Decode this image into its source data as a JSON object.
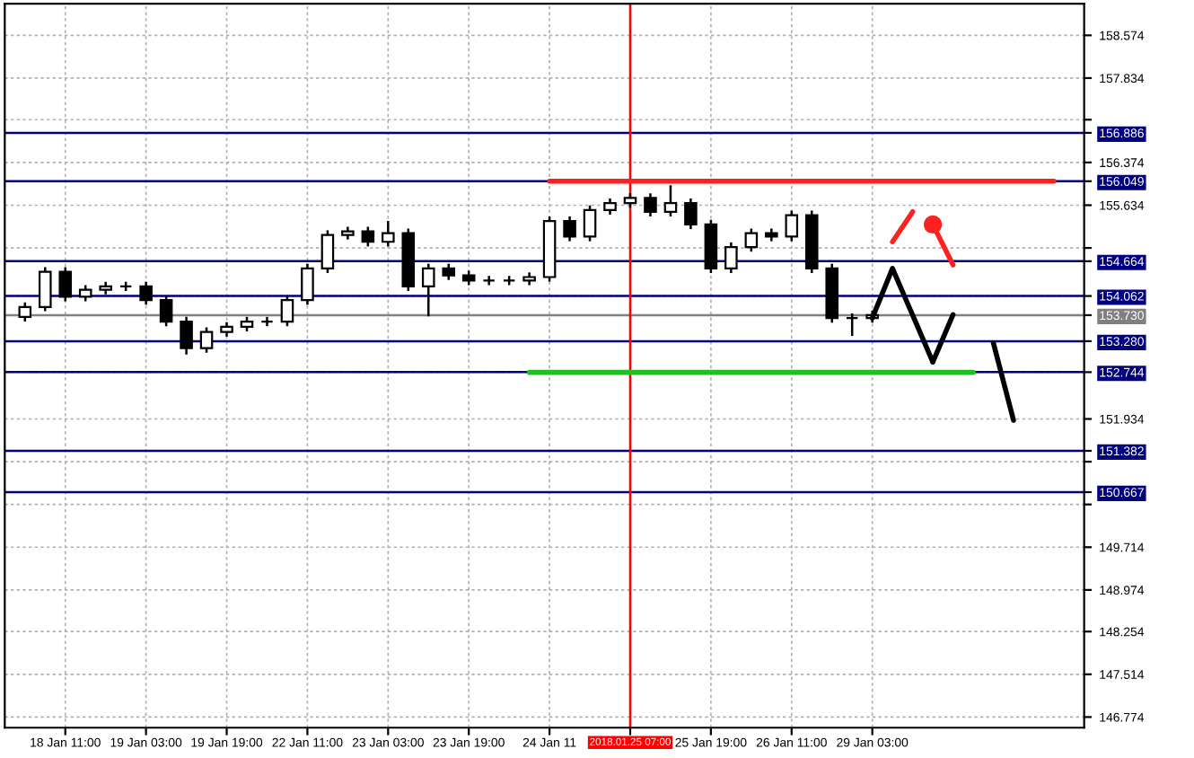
{
  "chart_data": {
    "type": "candlestick",
    "categories": [
      null,
      null,
      "18 Jan 11:00",
      null,
      null,
      null,
      "19 Jan 03:00",
      null,
      null,
      null,
      "19 Jan 19:00",
      null,
      null,
      null,
      "22 Jan 11:00",
      null,
      null,
      null,
      "23 Jan 03:00",
      null,
      null,
      null,
      "23 Jan 19:00",
      null,
      null,
      null,
      "24 Jan 11",
      null,
      null,
      null,
      "2018.01.25 07:00",
      null,
      null,
      null,
      "25 Jan 19:00",
      null,
      null,
      null,
      "26 Jan 11:00",
      null,
      null,
      null,
      "29 Jan 03:00",
      null,
      null,
      null,
      null,
      null,
      null,
      null,
      null,
      null,
      null
    ],
    "ohlc": [
      [
        153.7,
        153.95,
        153.62,
        153.87
      ],
      [
        153.87,
        154.56,
        153.8,
        154.48
      ],
      [
        154.48,
        154.56,
        153.97,
        154.05
      ],
      [
        154.05,
        154.25,
        153.97,
        154.17
      ],
      [
        154.17,
        154.31,
        154.09,
        154.23
      ],
      [
        154.23,
        154.31,
        154.15,
        154.23
      ],
      [
        154.23,
        154.31,
        153.91,
        153.99
      ],
      [
        153.99,
        154.07,
        153.54,
        153.62
      ],
      [
        153.62,
        153.7,
        153.05,
        153.16
      ],
      [
        153.16,
        153.52,
        153.08,
        153.44
      ],
      [
        153.44,
        153.61,
        153.36,
        153.53
      ],
      [
        153.53,
        153.7,
        153.45,
        153.62
      ],
      [
        153.62,
        153.7,
        153.54,
        153.62
      ],
      [
        153.62,
        154.07,
        153.54,
        153.99
      ],
      [
        153.99,
        154.62,
        153.91,
        154.54
      ],
      [
        154.54,
        155.2,
        154.46,
        155.12
      ],
      [
        155.12,
        155.26,
        155.04,
        155.18
      ],
      [
        155.18,
        155.26,
        154.92,
        155.0
      ],
      [
        155.0,
        155.36,
        154.92,
        155.15
      ],
      [
        155.15,
        155.23,
        154.15,
        154.23
      ],
      [
        154.23,
        154.62,
        153.71,
        154.54
      ],
      [
        154.54,
        154.62,
        154.34,
        154.42
      ],
      [
        154.42,
        154.5,
        154.25,
        154.33
      ],
      [
        154.33,
        154.41,
        154.25,
        154.33
      ],
      [
        154.33,
        154.41,
        154.25,
        154.33
      ],
      [
        154.33,
        154.47,
        154.25,
        154.39
      ],
      [
        154.39,
        155.44,
        154.31,
        155.36
      ],
      [
        155.36,
        155.44,
        155.01,
        155.09
      ],
      [
        155.09,
        155.63,
        155.01,
        155.55
      ],
      [
        155.55,
        155.75,
        155.47,
        155.67
      ],
      [
        155.67,
        155.84,
        155.59,
        155.76
      ],
      [
        155.76,
        155.84,
        155.44,
        155.52
      ],
      [
        155.52,
        155.98,
        155.44,
        155.67
      ],
      [
        155.67,
        155.75,
        155.22,
        155.3
      ],
      [
        155.3,
        155.38,
        154.46,
        154.54
      ],
      [
        154.54,
        154.99,
        154.46,
        154.91
      ],
      [
        154.91,
        155.23,
        154.83,
        155.15
      ],
      [
        155.15,
        155.23,
        155.01,
        155.09
      ],
      [
        155.09,
        155.54,
        155.01,
        155.46
      ],
      [
        155.46,
        155.54,
        154.46,
        154.54
      ],
      [
        154.54,
        154.62,
        153.6,
        153.68
      ],
      [
        153.68,
        153.76,
        153.37,
        153.68
      ],
      [
        153.68,
        153.81,
        153.6,
        153.73
      ],
      null,
      null,
      null,
      null,
      null,
      null,
      null,
      null,
      null,
      null
    ],
    "series": [
      {
        "type": "line",
        "color": "#ff2020",
        "values": [
          null,
          null,
          null,
          null,
          null,
          null,
          null,
          null,
          null,
          null,
          null,
          null,
          null,
          null,
          null,
          null,
          null,
          null,
          null,
          null,
          null,
          null,
          null,
          null,
          null,
          null,
          156.05,
          156.05,
          156.05,
          156.05,
          156.05,
          156.05,
          156.05,
          156.05,
          156.05,
          156.05,
          156.05,
          156.05,
          156.05,
          156.05,
          156.05,
          156.05,
          156.05,
          156.05,
          156.05,
          156.05,
          156.05,
          156.05,
          156.05,
          156.05,
          156.05,
          156.05,
          null
        ]
      },
      {
        "type": "line",
        "color": "#20c020",
        "values": [
          null,
          null,
          null,
          null,
          null,
          null,
          null,
          null,
          null,
          null,
          null,
          null,
          null,
          null,
          null,
          null,
          null,
          null,
          null,
          null,
          null,
          null,
          null,
          null,
          null,
          152.74,
          152.74,
          152.74,
          152.74,
          152.74,
          152.74,
          152.74,
          152.74,
          152.74,
          152.74,
          152.74,
          152.74,
          152.74,
          152.74,
          152.74,
          152.74,
          152.74,
          152.74,
          152.74,
          152.74,
          152.74,
          152.74,
          152.74,
          null,
          null,
          null,
          null,
          null
        ]
      },
      {
        "type": "line",
        "color": "#000000",
        "values": [
          null,
          null,
          null,
          null,
          null,
          null,
          null,
          null,
          null,
          null,
          null,
          null,
          null,
          null,
          null,
          null,
          null,
          null,
          null,
          null,
          null,
          null,
          null,
          null,
          null,
          null,
          null,
          null,
          null,
          null,
          null,
          null,
          null,
          null,
          null,
          null,
          null,
          null,
          null,
          null,
          null,
          null,
          153.68,
          154.54,
          153.73,
          152.92,
          null,
          null,
          null,
          null,
          null,
          null,
          null
        ]
      },
      {
        "type": "line",
        "color": "#000000",
        "values": [
          null,
          null,
          null,
          null,
          null,
          null,
          null,
          null,
          null,
          null,
          null,
          null,
          null,
          null,
          null,
          null,
          null,
          null,
          null,
          null,
          null,
          null,
          null,
          null,
          null,
          null,
          null,
          null,
          null,
          null,
          null,
          null,
          null,
          null,
          null,
          null,
          null,
          null,
          null,
          null,
          null,
          null,
          null,
          null,
          null,
          152.92,
          153.74,
          null,
          null,
          null,
          null,
          null,
          null
        ]
      },
      {
        "type": "line",
        "color": "#000000",
        "values": [
          null,
          null,
          null,
          null,
          null,
          null,
          null,
          null,
          null,
          null,
          null,
          null,
          null,
          null,
          null,
          null,
          null,
          null,
          null,
          null,
          null,
          null,
          null,
          null,
          null,
          null,
          null,
          null,
          null,
          null,
          null,
          null,
          null,
          null,
          null,
          null,
          null,
          null,
          null,
          null,
          null,
          null,
          null,
          null,
          null,
          null,
          null,
          null,
          153.25,
          151.91,
          null,
          null,
          null
        ]
      },
      {
        "type": "line",
        "color": "#ff2020",
        "values": [
          null,
          null,
          null,
          null,
          null,
          null,
          null,
          null,
          null,
          null,
          null,
          null,
          null,
          null,
          null,
          null,
          null,
          null,
          null,
          null,
          null,
          null,
          null,
          null,
          null,
          null,
          null,
          null,
          null,
          null,
          null,
          null,
          null,
          null,
          null,
          null,
          null,
          null,
          null,
          null,
          null,
          null,
          null,
          155.0,
          155.52,
          null,
          null,
          null,
          null,
          null,
          null,
          null,
          null
        ]
      },
      {
        "type": "line",
        "color": "#ff2020",
        "values": [
          null,
          null,
          null,
          null,
          null,
          null,
          null,
          null,
          null,
          null,
          null,
          null,
          null,
          null,
          null,
          null,
          null,
          null,
          null,
          null,
          null,
          null,
          null,
          null,
          null,
          null,
          null,
          null,
          null,
          null,
          null,
          null,
          null,
          null,
          null,
          null,
          null,
          null,
          null,
          null,
          null,
          null,
          null,
          null,
          null,
          155.3,
          154.6,
          null,
          null,
          null,
          null,
          null,
          null
        ]
      },
      {
        "type": "scatter",
        "color": "#ff2020",
        "values": [
          null,
          null,
          null,
          null,
          null,
          null,
          null,
          null,
          null,
          null,
          null,
          null,
          null,
          null,
          null,
          null,
          null,
          null,
          null,
          null,
          null,
          null,
          null,
          null,
          null,
          null,
          null,
          null,
          null,
          null,
          null,
          null,
          null,
          null,
          null,
          null,
          null,
          null,
          null,
          null,
          null,
          null,
          null,
          null,
          null,
          155.3,
          null,
          null,
          null,
          null,
          null,
          null,
          null
        ]
      }
    ],
    "ref_lines": [
      {
        "axis": "y",
        "value": 156.886,
        "label": "156.886",
        "color": "#000080"
      },
      {
        "axis": "y",
        "value": 156.049,
        "label": "156.049",
        "color": "#000080"
      },
      {
        "axis": "y",
        "value": 154.664,
        "label": "154.664",
        "color": "#000080"
      },
      {
        "axis": "y",
        "value": 154.062,
        "label": "154.062",
        "color": "#000080"
      },
      {
        "axis": "y",
        "value": 153.73,
        "label": "153.730",
        "color": "#808080"
      },
      {
        "axis": "y",
        "value": 153.28,
        "label": "153.280",
        "color": "#000080"
      },
      {
        "axis": "y",
        "value": 152.744,
        "label": "152.744",
        "color": "#000080"
      },
      {
        "axis": "y",
        "value": 151.382,
        "label": "151.382",
        "color": "#000080"
      },
      {
        "axis": "y",
        "value": 150.667,
        "label": "150.667",
        "color": "#000080"
      },
      {
        "axis": "x",
        "value": "2018.01.25 07:00",
        "color": "#ff0000"
      }
    ],
    "ylim": [
      146.59,
      159.12
    ],
    "yticks": [
      158.574,
      157.834,
      {
        "value": 157.114,
        "label": null
      },
      156.374,
      155.634,
      {
        "value": 154.894,
        "label": null
      },
      151.934,
      {
        "value": 151.194,
        "label": null
      },
      {
        "value": 150.454,
        "label": null
      },
      149.714,
      148.974,
      148.254,
      147.514,
      146.774
    ],
    "grid": true
  }
}
